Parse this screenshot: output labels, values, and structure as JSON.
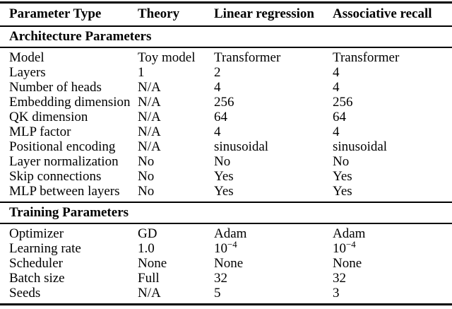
{
  "table": {
    "columns": [
      {
        "label": "Parameter Type"
      },
      {
        "label": "Theory"
      },
      {
        "label": "Linear regression"
      },
      {
        "label": "Associative recall"
      }
    ],
    "sections": [
      {
        "title": "Architecture Parameters",
        "rows": [
          [
            "Model",
            "Toy model",
            "Transformer",
            "Transformer"
          ],
          [
            "Layers",
            "1",
            "2",
            "4"
          ],
          [
            "Number of heads",
            "N/A",
            "4",
            "4"
          ],
          [
            "Embedding dimension",
            "N/A",
            "256",
            "256"
          ],
          [
            "QK dimension",
            "N/A",
            "64",
            "64"
          ],
          [
            "MLP factor",
            "N/A",
            "4",
            "4"
          ],
          [
            "Positional encoding",
            "N/A",
            "sinusoidal",
            "sinusoidal"
          ],
          [
            "Layer normalization",
            "No",
            "No",
            "No"
          ],
          [
            "Skip connections",
            "No",
            "Yes",
            "Yes"
          ],
          [
            "MLP between layers",
            "No",
            "Yes",
            "Yes"
          ]
        ]
      },
      {
        "title": "Training Parameters",
        "rows": [
          [
            "Optimizer",
            "GD",
            "Adam",
            "Adam"
          ],
          [
            "Learning rate",
            "1.0",
            "10^{−4}",
            "10^{−4}"
          ],
          [
            "Scheduler",
            "None",
            "None",
            "None"
          ],
          [
            "Batch size",
            "Full",
            "32",
            "32"
          ],
          [
            "Seeds",
            "N/A",
            "5",
            "3"
          ]
        ]
      }
    ]
  }
}
